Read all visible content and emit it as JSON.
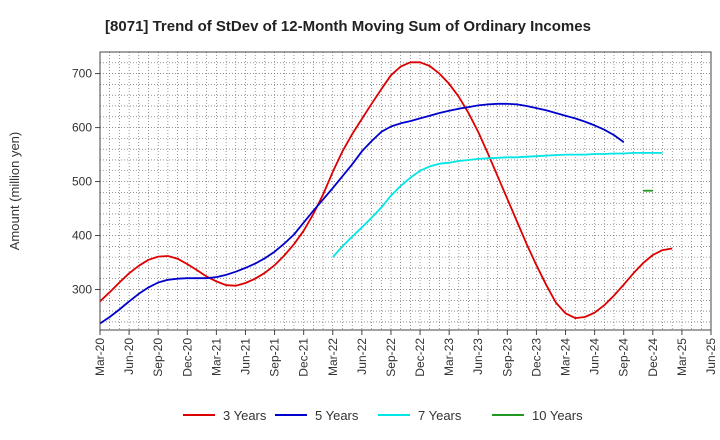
{
  "chart_data": {
    "type": "line",
    "title": "[8071]  Trend of StDev of 12-Month Moving Sum of Ordinary Incomes",
    "xlabel": "",
    "ylabel": "Amount (million yen)",
    "ylim": [
      225,
      740
    ],
    "yticks": [
      300,
      400,
      500,
      600,
      700
    ],
    "x_tick_labels": [
      "Mar-20",
      "Jun-20",
      "Sep-20",
      "Dec-20",
      "Mar-21",
      "Jun-21",
      "Sep-21",
      "Dec-21",
      "Mar-22",
      "Jun-22",
      "Sep-22",
      "Dec-22",
      "Mar-23",
      "Jun-23",
      "Sep-23",
      "Dec-23",
      "Mar-24",
      "Jun-24",
      "Sep-24",
      "Dec-24",
      "Mar-25",
      "Jun-25"
    ],
    "x_range": [
      0,
      63
    ],
    "grid": true,
    "legend_position": "bottom",
    "series": [
      {
        "name": "3 Years",
        "color": "#dd0000",
        "x": [
          0,
          1,
          2,
          3,
          4,
          5,
          6,
          7,
          8,
          9,
          10,
          11,
          12,
          13,
          14,
          15,
          16,
          17,
          18,
          19,
          20,
          21,
          22,
          23,
          24,
          25,
          26,
          27,
          28,
          29,
          30,
          31,
          32,
          33,
          34,
          35,
          36,
          37,
          38,
          39,
          40,
          41,
          42,
          43,
          44,
          45,
          46,
          47,
          48,
          49,
          50,
          51,
          52,
          53,
          54,
          55,
          56,
          57,
          58,
          59,
          60
        ],
        "values": [
          278,
          295,
          313,
          330,
          344,
          355,
          361,
          362,
          357,
          347,
          336,
          324,
          315,
          308,
          307,
          312,
          320,
          331,
          345,
          363,
          384,
          409,
          440,
          476,
          518,
          556,
          588,
          616,
          644,
          671,
          697,
          713,
          721,
          721,
          714,
          700,
          681,
          657,
          627,
          592,
          552,
          510,
          468,
          426,
          384,
          345,
          309,
          276,
          256,
          247,
          249,
          257,
          271,
          289,
          309,
          330,
          349,
          364,
          373,
          376,
          null
        ]
      },
      {
        "name": "5 Years",
        "color": "#0000cc",
        "x": [
          0,
          1,
          2,
          3,
          4,
          5,
          6,
          7,
          8,
          9,
          10,
          11,
          12,
          13,
          14,
          15,
          16,
          17,
          18,
          19,
          20,
          21,
          22,
          23,
          24,
          25,
          26,
          27,
          28,
          29,
          30,
          31,
          32,
          33,
          34,
          35,
          36,
          37,
          38,
          39,
          40,
          41,
          42,
          43,
          44,
          45,
          46,
          47,
          48,
          49,
          50,
          51,
          52,
          53,
          54,
          55,
          56,
          57,
          58,
          59,
          60
        ],
        "values": [
          237,
          249,
          263,
          278,
          292,
          304,
          313,
          318,
          320,
          321,
          321,
          321,
          323,
          327,
          333,
          340,
          348,
          358,
          370,
          385,
          402,
          424,
          446,
          467,
          488,
          510,
          532,
          556,
          575,
          592,
          602,
          608,
          612,
          617,
          622,
          627,
          631,
          635,
          638,
          641,
          643,
          644,
          644,
          643,
          640,
          636,
          632,
          627,
          622,
          617,
          611,
          604,
          596,
          586,
          573,
          null,
          null,
          null,
          null,
          null,
          null
        ]
      },
      {
        "name": "7 Years",
        "color": "#00e5e5",
        "x": [
          0,
          1,
          2,
          3,
          4,
          5,
          6,
          7,
          8,
          9,
          10,
          11,
          12,
          13,
          14,
          15,
          16,
          17,
          18,
          19,
          20,
          21,
          22,
          23,
          24,
          25,
          26,
          27,
          28,
          29,
          30,
          31,
          32,
          33,
          34,
          35,
          36,
          37,
          38,
          39,
          40,
          41,
          42,
          43,
          44,
          45,
          46,
          47,
          48,
          49,
          50,
          51,
          52,
          53,
          54,
          55,
          56,
          57,
          58,
          59,
          60
        ],
        "values": [
          null,
          null,
          null,
          null,
          null,
          null,
          null,
          null,
          null,
          null,
          null,
          null,
          null,
          null,
          null,
          null,
          null,
          null,
          null,
          null,
          null,
          null,
          null,
          null,
          360,
          380,
          398,
          415,
          433,
          452,
          474,
          492,
          507,
          520,
          528,
          533,
          535,
          538,
          540,
          542,
          543,
          544,
          545,
          545,
          546,
          547,
          548,
          549,
          550,
          550,
          550,
          551,
          551,
          552,
          552,
          553,
          553,
          553,
          553,
          null,
          null
        ]
      },
      {
        "name": "10 Years",
        "color": "#229922",
        "x": [
          56,
          57
        ],
        "values": [
          483,
          483
        ]
      }
    ]
  }
}
